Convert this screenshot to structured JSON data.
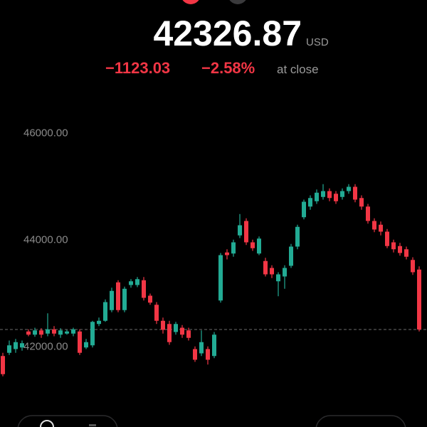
{
  "header": {
    "price": "42326.87",
    "currency": "USD",
    "change": "−1123.03",
    "change_percent": "−2.58%",
    "status": "at close"
  },
  "chart_data": {
    "type": "candlestick",
    "up_color": "#22ab94",
    "down_color": "#f23645",
    "ylim": [
      40500,
      46500
    ],
    "yticks": [
      {
        "value": 42000,
        "label": "42000.00"
      },
      {
        "value": 44000,
        "label": "44000.00"
      },
      {
        "value": 46000,
        "label": "46000.00"
      }
    ],
    "reference_line": 42326.87,
    "open": [
      41830,
      41890,
      41960,
      41990,
      42290,
      42230,
      42310,
      42250,
      42330,
      42230,
      42250,
      42250,
      42290,
      41990,
      42030,
      42430,
      42490,
      42690,
      43210,
      42690,
      43160,
      43160,
      43250,
      42960,
      42790,
      42490,
      42430,
      42280,
      42360,
      42310,
      41960,
      41880,
      41960,
      41830,
      42870,
      43770,
      43750,
      44090,
      44360,
      43960,
      43750,
      43610,
      43480,
      43230,
      43320,
      43520,
      43880,
      44430,
      44630,
      44730,
      44810,
      44920,
      44870,
      44810,
      44920,
      45000,
      44790,
      44630,
      44360,
      44290,
      44160,
      43960,
      43890,
      43830,
      43630,
      43450
    ],
    "high": [
      41890,
      42120,
      42150,
      42120,
      42330,
      42360,
      42350,
      42630,
      42390,
      42350,
      42320,
      42360,
      42330,
      42150,
      42490,
      42550,
      42890,
      43110,
      43250,
      43130,
      43270,
      43310,
      43310,
      43000,
      42840,
      42550,
      42490,
      42470,
      42410,
      42360,
      42010,
      42310,
      42010,
      42280,
      43760,
      43830,
      44010,
      44490,
      44410,
      44010,
      44070,
      43670,
      43530,
      43400,
      43530,
      43930,
      44290,
      44760,
      44840,
      44950,
      45050,
      44970,
      44920,
      44970,
      45050,
      45050,
      44840,
      44680,
      44410,
      44350,
      44210,
      44010,
      43950,
      43880,
      43680,
      43510
    ],
    "low": [
      41450,
      41850,
      41890,
      41930,
      42200,
      42190,
      42170,
      42200,
      42200,
      42170,
      42230,
      42200,
      41850,
      41960,
      41990,
      42390,
      42470,
      42650,
      42650,
      42650,
      43110,
      43120,
      42870,
      42790,
      42430,
      42250,
      42040,
      42230,
      42170,
      42120,
      41720,
      41830,
      41670,
      41790,
      42830,
      43640,
      43690,
      44040,
      43910,
      43800,
      43720,
      43320,
      43290,
      42950,
      43090,
      43480,
      43830,
      44390,
      44570,
      44680,
      44760,
      44730,
      44680,
      44760,
      44870,
      44710,
      44570,
      44310,
      44150,
      44090,
      43850,
      43770,
      43710,
      43640,
      43350,
      42290
    ],
    "close": [
      41490,
      42030,
      42090,
      42070,
      42230,
      42310,
      42230,
      42330,
      42250,
      42310,
      42290,
      42330,
      41890,
      42090,
      42470,
      42490,
      42840,
      43050,
      42690,
      43090,
      43230,
      43270,
      42920,
      42830,
      42490,
      42320,
      42090,
      42430,
      42230,
      42170,
      41760,
      42090,
      41760,
      42230,
      43720,
      43720,
      43960,
      44280,
      43960,
      43850,
      44030,
      43360,
      43360,
      43360,
      43480,
      43880,
      44250,
      44720,
      44790,
      44890,
      44920,
      44790,
      44730,
      44920,
      45000,
      44760,
      44630,
      44360,
      44200,
      44160,
      43890,
      43830,
      43760,
      43690,
      43400,
      42326.87
    ]
  }
}
